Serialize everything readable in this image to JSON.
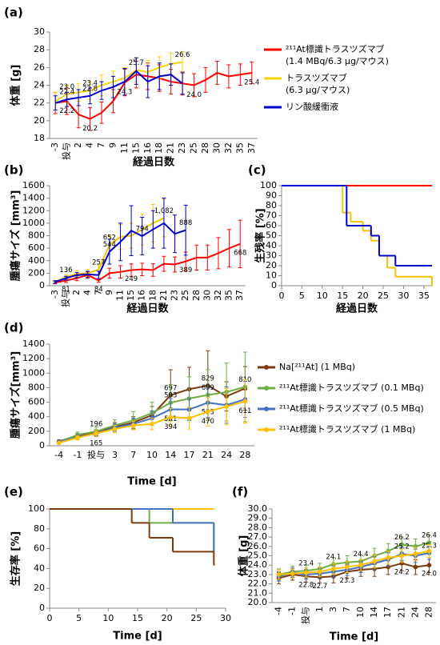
{
  "chart_data": [
    {
      "type": "line",
      "panel": "(a)",
      "x_label": "経過日数",
      "y_label": "体重 [g]",
      "categories": [
        "-3",
        "投与",
        "2",
        "4",
        "7",
        "9",
        "11",
        "15",
        "16",
        "18",
        "21",
        "23",
        "25",
        "28",
        "30",
        "32",
        "35",
        "37"
      ],
      "ylim": [
        18,
        30
      ],
      "yticks": [
        18,
        20,
        22,
        24,
        26,
        28,
        30
      ],
      "legend": "right",
      "markers": false,
      "series": [
        {
          "name": "²¹¹At標識トラスツズマブ",
          "subname": "(1.4 MBq/6.3 μg/マウス)",
          "color": "#ff0000",
          "values": [
            22.0,
            22.2,
            20.7,
            20.2,
            20.9,
            22.2,
            24.3,
            25.2,
            25.0,
            24.8,
            24.4,
            24.2,
            24.0,
            24.6,
            25.4,
            25.0,
            25.2,
            25.4
          ],
          "errors": [
            1.2,
            1.5,
            1.5,
            1.3,
            1.2,
            1.3,
            1.5,
            1.5,
            1.5,
            1.5,
            1.4,
            1.3,
            1.3,
            1.4,
            1.3,
            1.3,
            1.2,
            1.2
          ],
          "value_labels": [
            null,
            "22.2",
            null,
            "20.2",
            null,
            null,
            "24.3",
            null,
            null,
            null,
            null,
            null,
            "24.0",
            null,
            null,
            null,
            null,
            "25.4"
          ]
        },
        {
          "name": "トラスツズマブ",
          "subname": "(6.3 μg/マウス)",
          "color": "#f5d60a",
          "values": [
            22.2,
            23.0,
            23.2,
            23.4,
            24.0,
            24.4,
            24.8,
            25.7,
            25.5,
            26.0,
            26.4,
            26.6,
            null,
            null,
            null,
            null,
            null,
            null
          ],
          "errors": [
            1.0,
            1.0,
            1.0,
            1.0,
            1.2,
            1.2,
            1.2,
            1.3,
            1.3,
            1.2,
            1.2,
            1.2,
            null,
            null,
            null,
            null,
            null,
            null
          ],
          "value_labels": [
            null,
            "23.0",
            null,
            "23.4",
            null,
            null,
            null,
            "25.7",
            null,
            null,
            null,
            "26.6",
            null,
            null,
            null,
            null,
            null,
            null
          ]
        },
        {
          "name": "リン酸緩衝液",
          "color": "#0000cc",
          "values": [
            22.0,
            22.4,
            22.6,
            22.8,
            23.4,
            23.8,
            24.4,
            25.6,
            24.4,
            25.0,
            25.2,
            24.2,
            null,
            null,
            null,
            null,
            null,
            null
          ],
          "errors": [
            0.8,
            0.8,
            0.9,
            0.9,
            1.0,
            1.2,
            1.5,
            1.5,
            1.8,
            1.5,
            1.2,
            1.2,
            null,
            null,
            null,
            null,
            null,
            null
          ],
          "value_labels": [
            null,
            "22.4",
            null,
            "22.8",
            null,
            null,
            null,
            null,
            null,
            null,
            null,
            null,
            null,
            null,
            null,
            null,
            null,
            null
          ]
        }
      ]
    },
    {
      "type": "line",
      "panel": "(b)",
      "x_label": "経過日数",
      "y_label": "腫瘍サイズ [mm³]",
      "categories": [
        "-3",
        "投与",
        "2",
        "4",
        "7",
        "9",
        "11",
        "15",
        "16",
        "18",
        "21",
        "23",
        "25",
        "28",
        "30",
        "32",
        "35",
        "37"
      ],
      "ylim": [
        0,
        1600
      ],
      "yticks": [
        0,
        200,
        400,
        600,
        800,
        1000,
        1200,
        1400,
        1600
      ],
      "markers": false,
      "series": [
        {
          "color": "#ff0000",
          "values": [
            50,
            81,
            120,
            170,
            84,
            200,
            220,
            249,
            260,
            250,
            350,
            340,
            389,
            450,
            450,
            520,
            600,
            668
          ],
          "errors": [
            20,
            30,
            40,
            50,
            30,
            80,
            100,
            100,
            100,
            100,
            120,
            120,
            150,
            200,
            200,
            250,
            300,
            380
          ],
          "value_labels": [
            null,
            "81",
            null,
            null,
            "84",
            null,
            null,
            "249",
            null,
            null,
            null,
            null,
            "389",
            null,
            null,
            null,
            null,
            "668"
          ]
        },
        {
          "color": "#f5c400",
          "values": [
            60,
            136,
            190,
            200,
            257,
            652,
            780,
            800,
            900,
            1000,
            1082,
            null,
            null,
            null,
            null,
            null,
            null,
            null
          ],
          "errors": [
            20,
            40,
            50,
            60,
            80,
            150,
            200,
            200,
            250,
            300,
            300,
            null,
            null,
            null,
            null,
            null,
            null,
            null
          ],
          "value_labels": [
            null,
            "136",
            null,
            null,
            "257",
            "652",
            null,
            null,
            null,
            null,
            "1,082",
            null,
            null,
            null,
            null,
            null,
            null,
            null
          ]
        },
        {
          "color": "#0000cc",
          "values": [
            60,
            120,
            170,
            180,
            170,
            544,
            700,
            880,
            794,
            900,
            1000,
            830,
            888,
            null,
            null,
            null,
            null,
            null
          ],
          "errors": [
            20,
            30,
            40,
            50,
            60,
            200,
            300,
            400,
            300,
            300,
            400,
            300,
            400,
            null,
            null,
            null,
            null,
            null
          ],
          "value_labels": [
            null,
            null,
            null,
            null,
            null,
            "544",
            null,
            null,
            "794",
            null,
            null,
            null,
            "888",
            null,
            null,
            null,
            null,
            null
          ]
        }
      ]
    },
    {
      "type": "step",
      "panel": "(c)",
      "x_label": "経過日数",
      "y_label": "生残率 [%]",
      "xlim": [
        0,
        37
      ],
      "xticks": [
        0,
        5,
        10,
        15,
        20,
        25,
        30,
        35
      ],
      "ylim": [
        0,
        100
      ],
      "yticks": [
        0,
        10,
        20,
        30,
        40,
        50,
        60,
        70,
        80,
        90,
        100
      ],
      "series": [
        {
          "color": "#ff0000",
          "x": [
            0,
            37
          ],
          "values": [
            100,
            100
          ]
        },
        {
          "color": "#f5c400",
          "x": [
            0,
            15,
            17,
            20,
            22,
            24,
            26,
            28,
            37
          ],
          "values": [
            100,
            73,
            64,
            55,
            45,
            30,
            18,
            9,
            0
          ]
        },
        {
          "color": "#0000cc",
          "x": [
            0,
            16,
            22,
            24,
            28,
            37
          ],
          "values": [
            100,
            60,
            50,
            30,
            20,
            20
          ]
        }
      ]
    },
    {
      "type": "line",
      "panel": "(d)",
      "x_label": "Time [d]",
      "y_label": "腫瘍サイズ[mm³]",
      "categories": [
        "-4",
        "-1",
        "投与",
        "3",
        "7",
        "10",
        "14",
        "17",
        "21",
        "24",
        "28"
      ],
      "ylim": [
        0,
        1400
      ],
      "yticks": [
        0,
        200,
        400,
        600,
        800,
        1000,
        1200,
        1400
      ],
      "legend": "right",
      "markers": true,
      "series": [
        {
          "name": "Na[²¹¹At] (1 MBq)",
          "color": "#7b3a10",
          "values": [
            60,
            140,
            180,
            260,
            320,
            420,
            697,
            780,
            829,
            680,
            790
          ],
          "errors": [
            15,
            30,
            40,
            60,
            80,
            120,
            350,
            300,
            480,
            200,
            300
          ],
          "value_labels": [
            null,
            null,
            null,
            null,
            null,
            null,
            "697",
            null,
            "829",
            null,
            null
          ]
        },
        {
          "name": "²¹¹At標識トラスツズマブ (0.1 MBq)",
          "color": "#70ad47",
          "values": [
            50,
            150,
            196,
            280,
            350,
            450,
            593,
            650,
            699,
            740,
            810
          ],
          "errors": [
            15,
            40,
            60,
            80,
            120,
            150,
            250,
            300,
            350,
            400,
            480
          ],
          "value_labels": [
            null,
            null,
            "196",
            null,
            null,
            null,
            "593",
            null,
            "699",
            null,
            "810"
          ]
        },
        {
          "name": "²¹¹At標識トラスツズマブ (0.5 MBq)",
          "color": "#4472c4",
          "values": [
            50,
            120,
            165,
            250,
            300,
            380,
            501,
            500,
            593,
            560,
            640
          ],
          "errors": [
            10,
            30,
            40,
            50,
            80,
            100,
            150,
            150,
            200,
            250,
            250
          ],
          "value_labels": [
            null,
            null,
            "165",
            null,
            null,
            null,
            "501",
            null,
            "593",
            null,
            null
          ]
        },
        {
          "name": "²¹¹At標識トラスツズマブ (1 MBq)",
          "color": "#ffc000",
          "values": [
            40,
            110,
            170,
            230,
            280,
            300,
            394,
            380,
            470,
            540,
            611
          ],
          "errors": [
            10,
            30,
            40,
            50,
            60,
            80,
            120,
            150,
            200,
            250,
            300
          ],
          "value_labels": [
            null,
            null,
            null,
            null,
            null,
            null,
            "394",
            null,
            "470",
            null,
            "611"
          ]
        }
      ]
    },
    {
      "type": "step",
      "panel": "(e)",
      "x_label": "Time [d]",
      "y_label": "生存率 [%]",
      "xlim": [
        0,
        30
      ],
      "xticks": [
        0,
        5,
        10,
        15,
        20,
        25,
        30
      ],
      "ylim": [
        0,
        100
      ],
      "yticks": [
        0,
        20,
        40,
        60,
        80,
        100
      ],
      "series": [
        {
          "color": "#ffc000",
          "x": [
            0,
            28
          ],
          "values": [
            100,
            100
          ]
        },
        {
          "color": "#70ad47",
          "x": [
            0,
            17,
            28
          ],
          "values": [
            100,
            86,
            57
          ]
        },
        {
          "color": "#4472c4",
          "x": [
            0,
            21,
            28
          ],
          "values": [
            100,
            86,
            57
          ]
        },
        {
          "color": "#7b3a10",
          "x": [
            0,
            14,
            17,
            21,
            28
          ],
          "values": [
            100,
            86,
            71,
            57,
            43
          ]
        }
      ]
    },
    {
      "type": "line",
      "panel": "(f)",
      "x_label": "Time [d]",
      "y_label": "体重 [g]",
      "categories": [
        "-4",
        "-1",
        "投与",
        "1",
        "3",
        "7",
        "10",
        "14",
        "17",
        "21",
        "24",
        "28"
      ],
      "ylim": [
        20,
        30
      ],
      "yticks": [
        {
          "value": 20,
          "label": "20.0"
        },
        {
          "value": 21,
          "label": "21.0"
        },
        {
          "value": 22,
          "label": "22.0"
        },
        {
          "value": 23,
          "label": "23.0"
        },
        {
          "value": 24,
          "label": "24.0"
        },
        {
          "value": 25,
          "label": "25.0"
        },
        {
          "value": 26,
          "label": "26.0"
        },
        {
          "value": 27,
          "label": "27.0"
        },
        {
          "value": 28,
          "label": "28.0"
        },
        {
          "value": 29,
          "label": "29.0"
        },
        {
          "value": 30,
          "label": "30.0"
        }
      ],
      "markers": true,
      "series": [
        {
          "color": "#7b3a10",
          "values": [
            22.6,
            23.0,
            22.8,
            22.7,
            22.8,
            23.3,
            23.5,
            23.6,
            23.8,
            24.2,
            23.8,
            24.0
          ],
          "errors": [
            0.6,
            0.6,
            0.6,
            0.6,
            0.7,
            0.7,
            0.7,
            0.8,
            0.8,
            0.8,
            0.8,
            0.8
          ],
          "value_labels": [
            null,
            null,
            "22.8",
            "22.7",
            null,
            "23.3",
            null,
            null,
            null,
            "24.2",
            null,
            "24.0"
          ]
        },
        {
          "color": "#70ad47",
          "values": [
            23.0,
            23.3,
            23.4,
            23.6,
            24.1,
            24.3,
            24.4,
            25.0,
            25.5,
            26.2,
            26.0,
            26.4
          ],
          "errors": [
            0.6,
            0.6,
            0.6,
            0.6,
            0.7,
            0.7,
            0.7,
            0.8,
            0.8,
            0.8,
            0.8,
            0.8
          ],
          "value_labels": [
            null,
            null,
            "23.4",
            null,
            "24.1",
            null,
            "24.4",
            null,
            null,
            "26.2",
            null,
            "26.4"
          ]
        },
        {
          "color": "#4472c4",
          "values": [
            22.8,
            23.2,
            23.0,
            23.1,
            23.3,
            23.5,
            23.8,
            24.2,
            24.6,
            25.2,
            25.0,
            25.3
          ],
          "errors": [
            0.5,
            0.5,
            0.5,
            0.5,
            0.6,
            0.6,
            0.6,
            0.7,
            0.7,
            0.7,
            0.7,
            0.7
          ],
          "value_labels": [
            null,
            null,
            null,
            null,
            null,
            null,
            null,
            null,
            null,
            "25.2",
            null,
            "25.3"
          ]
        },
        {
          "color": "#ffc000",
          "values": [
            23.0,
            23.1,
            23.2,
            23.3,
            23.6,
            23.8,
            24.0,
            24.4,
            24.8,
            25.0,
            25.2,
            25.5
          ],
          "errors": [
            0.5,
            0.5,
            0.5,
            0.5,
            0.6,
            0.6,
            0.6,
            0.7,
            0.7,
            0.7,
            0.7,
            0.7
          ]
        }
      ]
    }
  ]
}
